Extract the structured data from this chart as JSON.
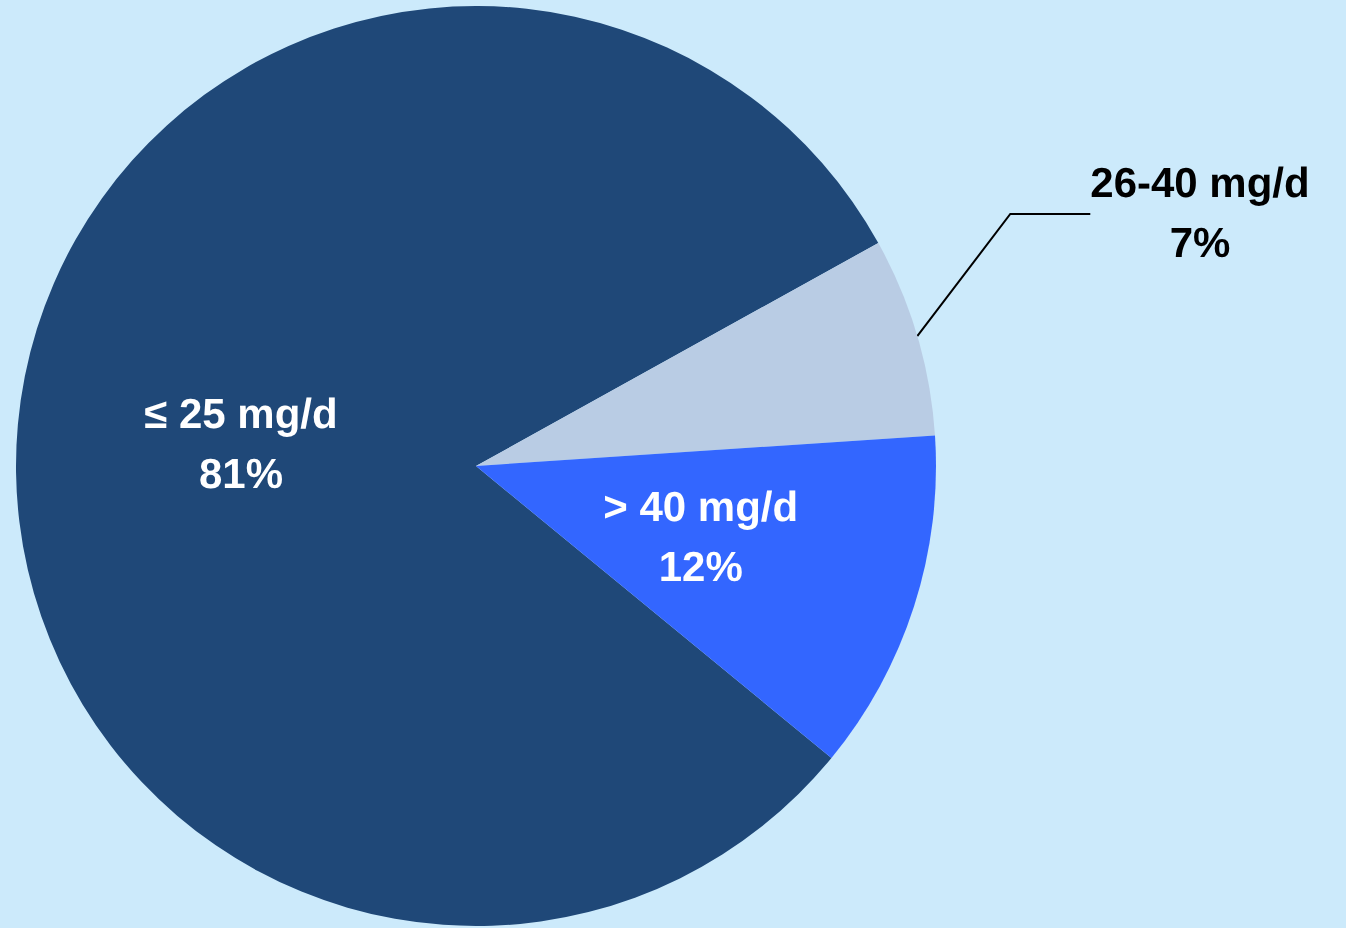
{
  "chart_data": {
    "type": "pie",
    "categories": [
      "≤ 25 mg/d",
      "26-40 mg/d",
      "> 40 mg/d"
    ],
    "values": [
      81,
      7,
      12
    ],
    "colors": [
      "#1f4878",
      "#b9cce4",
      "#3366ff"
    ],
    "value_labels": [
      "81%",
      "7%",
      "12%"
    ]
  }
}
